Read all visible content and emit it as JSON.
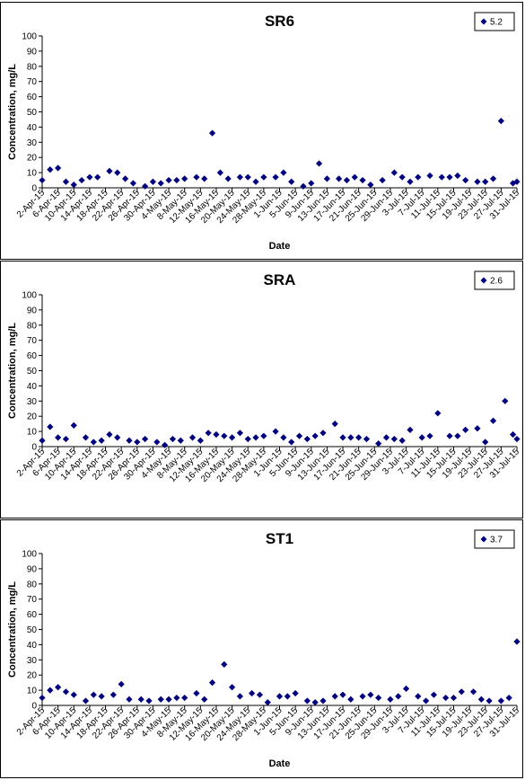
{
  "chart_data": [
    {
      "type": "scatter",
      "title": "SR6",
      "xlabel": "Date",
      "ylabel": "Concentration, mg/L",
      "ylim": [
        0,
        100
      ],
      "yticks": [
        0,
        10,
        20,
        30,
        40,
        50,
        60,
        70,
        80,
        90,
        100
      ],
      "xticks": [
        "2-Apr-15",
        "6-Apr-15",
        "10-Apr-15",
        "14-Apr-15",
        "18-Apr-15",
        "22-Apr-15",
        "26-Apr-15",
        "30-Apr-15",
        "4-May-15",
        "8-May-15",
        "12-May-15",
        "16-May-15",
        "20-May-15",
        "24-May-15",
        "28-May-15",
        "1-Jun-15",
        "5-Jun-15",
        "9-Jun-15",
        "13-Jun-15",
        "17-Jun-15",
        "21-Jun-15",
        "25-Jun-15",
        "29-Jun-15",
        "3-Jul-15",
        "7-Jul-15",
        "11-Jul-15",
        "15-Jul-15",
        "19-Jul-15",
        "23-Jul-15",
        "27-Jul-15",
        "31-Jul-15"
      ],
      "grid": false,
      "legend_position": "top-right",
      "marker_color": "#00007f",
      "series": [
        {
          "name": "5.2",
          "x": [
            "2-Apr-15",
            "4-Apr-15",
            "6-Apr-15",
            "8-Apr-15",
            "10-Apr-15",
            "12-Apr-15",
            "14-Apr-15",
            "16-Apr-15",
            "19-Apr-15",
            "21-Apr-15",
            "23-Apr-15",
            "25-Apr-15",
            "28-Apr-15",
            "30-Apr-15",
            "2-May-15",
            "4-May-15",
            "6-May-15",
            "8-May-15",
            "11-May-15",
            "13-May-15",
            "15-May-15",
            "17-May-15",
            "19-May-15",
            "22-May-15",
            "24-May-15",
            "26-May-15",
            "28-May-15",
            "31-May-15",
            "2-Jun-15",
            "4-Jun-15",
            "7-Jun-15",
            "9-Jun-15",
            "11-Jun-15",
            "13-Jun-15",
            "16-Jun-15",
            "18-Jun-15",
            "20-Jun-15",
            "22-Jun-15",
            "24-Jun-15",
            "27-Jun-15",
            "30-Jun-15",
            "2-Jul-15",
            "4-Jul-15",
            "6-Jul-15",
            "9-Jul-15",
            "12-Jul-15",
            "14-Jul-15",
            "16-Jul-15",
            "18-Jul-15",
            "21-Jul-15",
            "23-Jul-15",
            "25-Jul-15",
            "27-Jul-15",
            "30-Jul-15",
            "31-Jul-15"
          ],
          "y": [
            5,
            12,
            13,
            4,
            2,
            5,
            7,
            7,
            11,
            10,
            6,
            3,
            1,
            4,
            3,
            5,
            5,
            6,
            7,
            6,
            36,
            10,
            6,
            7,
            7,
            4,
            7,
            7,
            10,
            4,
            1,
            3,
            16,
            6,
            6,
            5,
            7,
            5,
            2,
            5,
            10,
            7,
            4,
            7,
            8,
            7,
            7,
            8,
            5,
            4,
            4,
            6,
            44,
            3,
            4
          ]
        }
      ]
    },
    {
      "type": "scatter",
      "title": "SRA",
      "xlabel": "",
      "ylabel": "Concentration, mg/L",
      "ylim": [
        0,
        100
      ],
      "yticks": [
        0,
        10,
        20,
        30,
        40,
        50,
        60,
        70,
        80,
        90,
        100
      ],
      "xticks": [
        "2-Apr-15",
        "6-Apr-15",
        "10-Apr-15",
        "14-Apr-15",
        "18-Apr-15",
        "22-Apr-15",
        "26-Apr-15",
        "30-Apr-15",
        "4-May-15",
        "8-May-15",
        "12-May-15",
        "16-May-15",
        "20-May-15",
        "24-May-15",
        "28-May-15",
        "1-Jun-15",
        "5-Jun-15",
        "9-Jun-15",
        "13-Jun-15",
        "17-Jun-15",
        "21-Jun-15",
        "25-Jun-15",
        "29-Jun-15",
        "3-Jul-15",
        "7-Jul-15",
        "11-Jul-15",
        "15-Jul-15",
        "19-Jul-15",
        "23-Jul-15",
        "27-Jul-15",
        "31-Jul-15"
      ],
      "grid": false,
      "legend_position": "top-right",
      "marker_color": "#00007f",
      "series": [
        {
          "name": "2.6",
          "x": [
            "2-Apr-15",
            "4-Apr-15",
            "6-Apr-15",
            "8-Apr-15",
            "10-Apr-15",
            "13-Apr-15",
            "15-Apr-15",
            "17-Apr-15",
            "19-Apr-15",
            "21-Apr-15",
            "24-Apr-15",
            "26-Apr-15",
            "28-Apr-15",
            "1-May-15",
            "3-May-15",
            "5-May-15",
            "7-May-15",
            "10-May-15",
            "12-May-15",
            "14-May-15",
            "16-May-15",
            "18-May-15",
            "20-May-15",
            "22-May-15",
            "24-May-15",
            "26-May-15",
            "28-May-15",
            "31-May-15",
            "2-Jun-15",
            "4-Jun-15",
            "6-Jun-15",
            "8-Jun-15",
            "10-Jun-15",
            "12-Jun-15",
            "15-Jun-15",
            "17-Jun-15",
            "19-Jun-15",
            "21-Jun-15",
            "23-Jun-15",
            "26-Jun-15",
            "28-Jun-15",
            "30-Jun-15",
            "2-Jul-15",
            "4-Jul-15",
            "7-Jul-15",
            "9-Jul-15",
            "11-Jul-15",
            "14-Jul-15",
            "16-Jul-15",
            "18-Jul-15",
            "21-Jul-15",
            "23-Jul-15",
            "25-Jul-15",
            "28-Jul-15",
            "30-Jul-15",
            "31-Jul-15"
          ],
          "y": [
            4,
            13,
            6,
            5,
            14,
            6,
            3,
            4,
            8,
            6,
            4,
            3,
            5,
            3,
            1,
            5,
            4,
            6,
            4,
            9,
            8,
            7,
            6,
            9,
            5,
            6,
            7,
            10,
            6,
            3,
            7,
            5,
            7,
            9,
            15,
            6,
            6,
            6,
            5,
            2,
            6,
            5,
            4,
            11,
            6,
            7,
            22,
            7,
            7,
            11,
            12,
            3,
            17,
            30,
            8,
            5
          ]
        }
      ]
    },
    {
      "type": "scatter",
      "title": "ST1",
      "xlabel": "Date",
      "ylabel": "Concentration, mg/L",
      "ylim": [
        0,
        100
      ],
      "yticks": [
        0,
        10,
        20,
        30,
        40,
        50,
        60,
        70,
        80,
        90,
        100
      ],
      "xticks": [
        "2-Apr-15",
        "6-Apr-15",
        "10-Apr-15",
        "14-Apr-15",
        "18-Apr-15",
        "22-Apr-15",
        "26-Apr-15",
        "30-Apr-15",
        "4-May-15",
        "8-May-15",
        "12-May-15",
        "16-May-15",
        "20-May-15",
        "24-May-15",
        "28-May-15",
        "1-Jun-15",
        "5-Jun-15",
        "9-Jun-15",
        "13-Jun-15",
        "17-Jun-15",
        "21-Jun-15",
        "25-Jun-15",
        "29-Jun-15",
        "3-Jul-15",
        "7-Jul-15",
        "11-Jul-15",
        "15-Jul-15",
        "19-Jul-15",
        "23-Jul-15",
        "27-Jul-15",
        "31-Jul-15"
      ],
      "grid": false,
      "legend_position": "top-right",
      "marker_color": "#00007f",
      "series": [
        {
          "name": "3.7",
          "x": [
            "2-Apr-15",
            "4-Apr-15",
            "6-Apr-15",
            "8-Apr-15",
            "10-Apr-15",
            "13-Apr-15",
            "15-Apr-15",
            "17-Apr-15",
            "20-Apr-15",
            "22-Apr-15",
            "24-Apr-15",
            "27-Apr-15",
            "29-Apr-15",
            "2-May-15",
            "4-May-15",
            "6-May-15",
            "8-May-15",
            "11-May-15",
            "13-May-15",
            "15-May-15",
            "18-May-15",
            "20-May-15",
            "22-May-15",
            "25-May-15",
            "27-May-15",
            "29-May-15",
            "1-Jun-15",
            "3-Jun-15",
            "5-Jun-15",
            "8-Jun-15",
            "10-Jun-15",
            "12-Jun-15",
            "15-Jun-15",
            "17-Jun-15",
            "19-Jun-15",
            "22-Jun-15",
            "24-Jun-15",
            "26-Jun-15",
            "29-Jun-15",
            "1-Jul-15",
            "3-Jul-15",
            "6-Jul-15",
            "8-Jul-15",
            "10-Jul-15",
            "13-Jul-15",
            "15-Jul-15",
            "17-Jul-15",
            "20-Jul-15",
            "22-Jul-15",
            "24-Jul-15",
            "27-Jul-15",
            "29-Jul-15",
            "31-Jul-15"
          ],
          "y": [
            5,
            10,
            12,
            9,
            7,
            3,
            7,
            6,
            7,
            14,
            4,
            4,
            3,
            4,
            4,
            5,
            5,
            8,
            4,
            15,
            27,
            12,
            6,
            8,
            7,
            2,
            6,
            6,
            8,
            3,
            2,
            3,
            6,
            7,
            4,
            6,
            7,
            5,
            4,
            6,
            11,
            6,
            3,
            7,
            5,
            5,
            9,
            9,
            4,
            3,
            3,
            5,
            42
          ]
        }
      ]
    }
  ]
}
